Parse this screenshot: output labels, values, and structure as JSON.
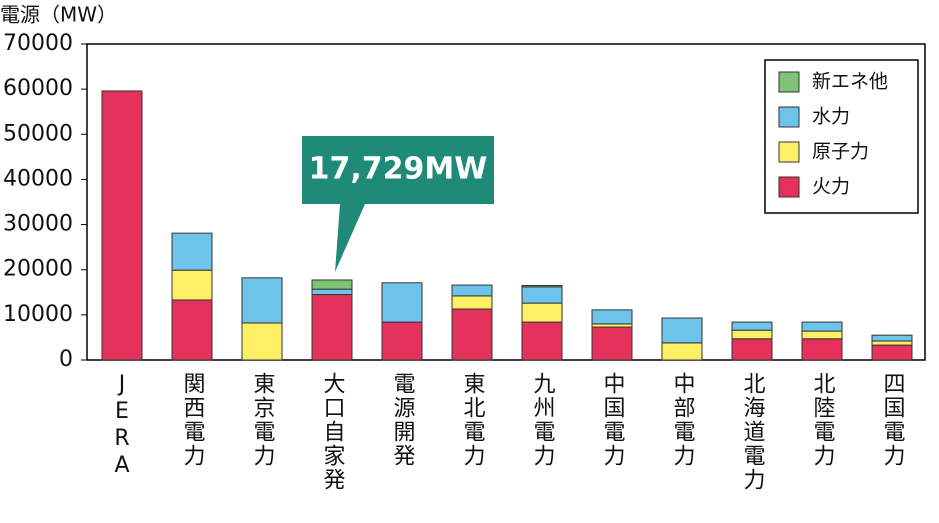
{
  "chart_data": {
    "type": "stacked_bar",
    "y_label": "電源（MW）",
    "annotation": "17,729MW",
    "categories": [
      "JERA",
      "関西電力",
      "東京電力",
      "大口自家発",
      "電源開発",
      "東北電力",
      "九州電力",
      "中国電力",
      "中部電力",
      "北海道電力",
      "北陸電力",
      "四国電力"
    ],
    "series": [
      {
        "name": "新エネ他",
        "color": "#7dc474",
        "values": [
          0,
          0,
          0,
          2029,
          0,
          0,
          300,
          0,
          0,
          0,
          0,
          0
        ]
      },
      {
        "name": "水力",
        "color": "#6ec3ea",
        "values": [
          0,
          8200,
          10000,
          1200,
          8700,
          2400,
          3600,
          3100,
          5500,
          1800,
          2000,
          1300
        ]
      },
      {
        "name": "原子力",
        "color": "#fdf064",
        "values": [
          0,
          6600,
          8200,
          0,
          0,
          2900,
          4200,
          700,
          3800,
          1900,
          1700,
          900
        ]
      },
      {
        "name": "火力",
        "color": "#e5325d",
        "values": [
          59600,
          13300,
          0,
          14500,
          8400,
          11300,
          8400,
          7300,
          0,
          4700,
          4700,
          3300
        ]
      }
    ],
    "ylim": [
      0,
      70000
    ],
    "yticks": [
      0,
      10000,
      20000,
      30000,
      40000,
      50000,
      60000,
      70000
    ],
    "legend": "top-right"
  }
}
